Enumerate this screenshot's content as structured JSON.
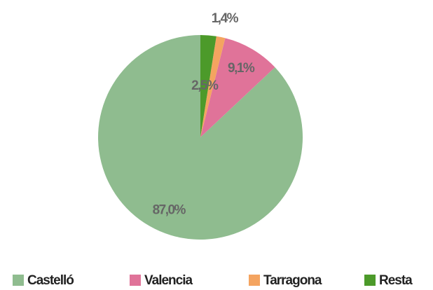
{
  "chart_data": {
    "type": "pie",
    "categories": [
      "Castelló",
      "Valencia",
      "Tarragona",
      "Resta"
    ],
    "values": [
      87.0,
      9.1,
      1.4,
      2.5
    ],
    "value_labels": [
      "87,0%",
      "9,1%",
      "1,4%",
      "2,5%"
    ],
    "colors": [
      "#8fbc8f",
      "#e07399",
      "#f4a460",
      "#4c9a2a"
    ],
    "startangle": 90,
    "direction": "counterclockwise",
    "legend": "bottom"
  }
}
